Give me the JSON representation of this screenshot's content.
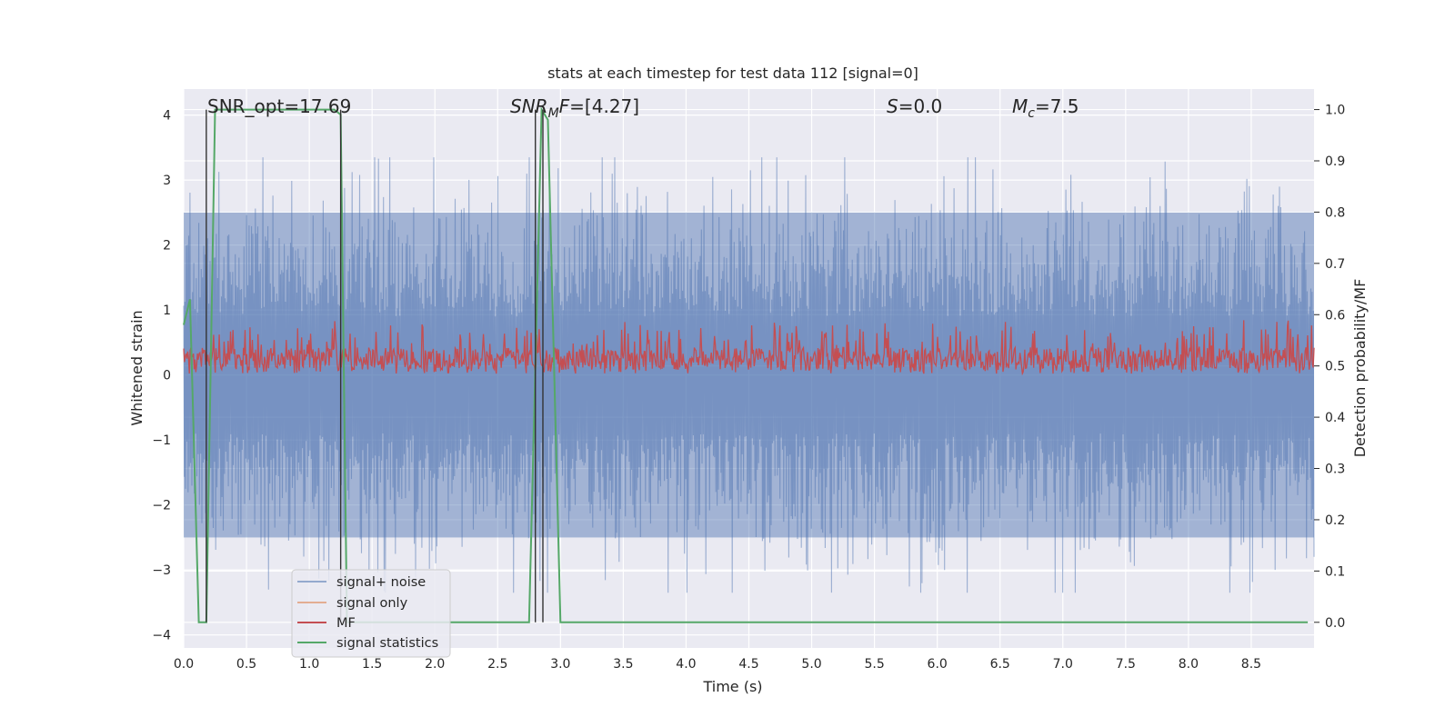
{
  "chart_data": {
    "type": "line",
    "title": "stats at each timestep for test data 112 [signal=0]",
    "xlabel": "Time (s)",
    "ylabel": "Whitened strain",
    "ylabel_right": "Detection probability/MF",
    "xlim": [
      0.0,
      9.0
    ],
    "ylim": [
      -4.2,
      4.4
    ],
    "ylim_right": [
      -0.05,
      1.04
    ],
    "xticks": [
      0.0,
      0.5,
      1.0,
      1.5,
      2.0,
      2.5,
      3.0,
      3.5,
      4.0,
      4.5,
      5.0,
      5.5,
      6.0,
      6.5,
      7.0,
      7.5,
      8.0,
      8.5
    ],
    "xtick_labels": [
      "0.0",
      "0.5",
      "1.0",
      "1.5",
      "2.0",
      "2.5",
      "3.0",
      "3.5",
      "4.0",
      "4.5",
      "5.0",
      "5.5",
      "6.0",
      "6.5",
      "7.0",
      "7.5",
      "8.0",
      "8.5"
    ],
    "yticks": [
      -4,
      -3,
      -2,
      -1,
      0,
      1,
      2,
      3,
      4
    ],
    "ytick_labels": [
      "−4",
      "−3",
      "−2",
      "−1",
      "0",
      "1",
      "2",
      "3",
      "4"
    ],
    "yticks_right": [
      0.0,
      0.1,
      0.2,
      0.3,
      0.4,
      0.5,
      0.6,
      0.7,
      0.8,
      0.9,
      1.0
    ],
    "ytick_labels_right": [
      "0.0",
      "0.1",
      "0.2",
      "0.3",
      "0.4",
      "0.5",
      "0.6",
      "0.7",
      "0.8",
      "0.9",
      "1.0"
    ],
    "annotations": [
      {
        "text": "SNR_opt=17.69",
        "x": 0.19,
        "y": 4.1
      },
      {
        "text": "SNR_MF=[4.27]",
        "x": 2.6,
        "y": 4.1
      },
      {
        "text": "S=0.0",
        "x": 5.6,
        "y": 4.1
      },
      {
        "text": "M_c=7.5",
        "x": 6.6,
        "y": 4.1
      }
    ],
    "series": [
      {
        "name": "signal+ noise",
        "color": "#4c72b0",
        "axis": "left",
        "description": "dense whitened strain noise between about -3 and +3.3",
        "envelope": [
          -2.5,
          2.5
        ]
      },
      {
        "name": "signal only",
        "color": "#dd8452",
        "axis": "left",
        "values": []
      },
      {
        "name": "MF",
        "color": "#c44e52",
        "axis": "left",
        "range": [
          0.0,
          1.0
        ]
      },
      {
        "name": "signal statistics",
        "color": "#55a868",
        "axis": "right",
        "x": [
          0.0,
          0.05,
          0.12,
          0.18,
          0.25,
          0.3,
          0.8,
          1.2,
          1.25,
          1.3,
          1.35,
          2.75,
          2.85,
          2.9,
          3.0,
          8.95
        ],
        "y": [
          0.58,
          0.63,
          0.0,
          0.0,
          1.0,
          1.0,
          1.0,
          1.0,
          0.99,
          0.0,
          0.0,
          0.0,
          1.0,
          0.98,
          0.0,
          0.0
        ]
      }
    ],
    "vertical_lines": [
      {
        "x": 0.18,
        "y_top": 1.0,
        "color": "#333333"
      },
      {
        "x": 1.25,
        "y_top": 1.0,
        "color": "#333333"
      },
      {
        "x": 2.8,
        "y_top": 1.0,
        "color": "#333333"
      },
      {
        "x": 2.86,
        "y_top": 1.0,
        "color": "#333333"
      }
    ],
    "legend": {
      "location": "lower-left",
      "entries": [
        "signal+ noise",
        "signal only",
        "MF",
        "signal statistics"
      ]
    },
    "grid": true,
    "background": "#eaeaf2"
  }
}
